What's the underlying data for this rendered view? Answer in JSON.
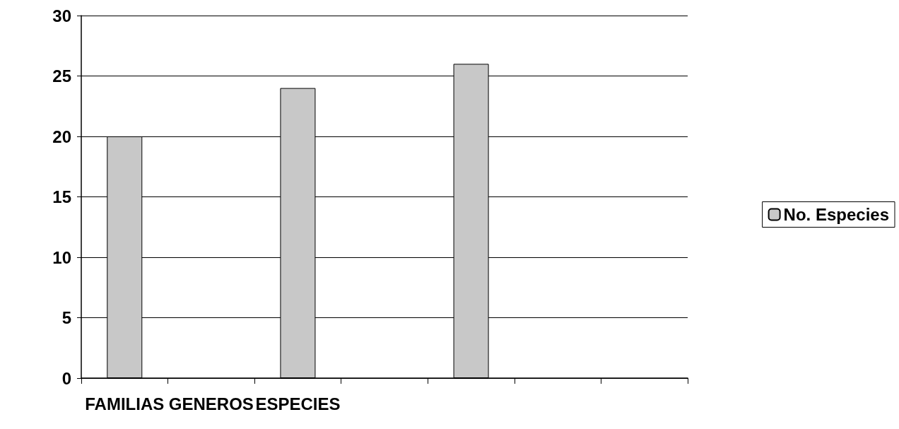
{
  "chart_data": {
    "type": "bar",
    "categories": [
      "FAMILIAS",
      "GENEROS",
      "ESPECIES",
      null,
      null,
      null,
      null
    ],
    "series": [
      {
        "name": "No. Especies",
        "color": "#c8c8c8",
        "values": [
          20,
          null,
          24,
          null,
          26,
          null,
          null
        ]
      }
    ],
    "ylim": [
      0,
      30
    ],
    "yticks": [
      0,
      5,
      10,
      15,
      20,
      25,
      30
    ],
    "grid": "y",
    "legend": "right"
  }
}
